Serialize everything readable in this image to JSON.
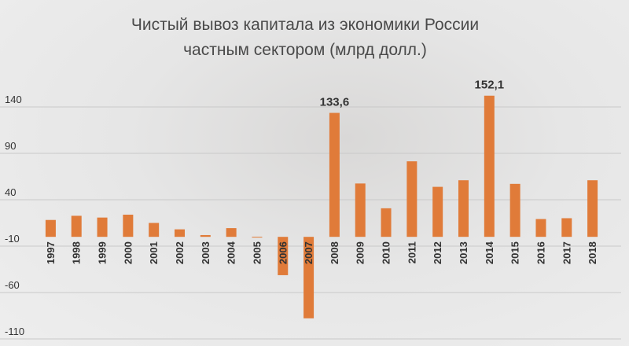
{
  "chart_data": {
    "type": "bar",
    "title_lines": [
      "Чистый вывоз капитала из экономики России",
      "частным сектором (млрд долл.)"
    ],
    "categories": [
      "1997",
      "1998",
      "1999",
      "2000",
      "2001",
      "2002",
      "2003",
      "2004",
      "2005",
      "2006",
      "2007",
      "2008",
      "2009",
      "2010",
      "2011",
      "2012",
      "2013",
      "2014",
      "2015",
      "2016",
      "2017",
      "2018"
    ],
    "values": [
      18.2,
      22.7,
      20.8,
      23.9,
      15.0,
      8.1,
      1.9,
      9.4,
      0.1,
      -41.3,
      -87.8,
      133.6,
      57.5,
      30.8,
      81.4,
      53.9,
      61.0,
      152.1,
      57.1,
      19.2,
      20.1,
      61.0
    ],
    "data_labels": [
      {
        "category": "2008",
        "text": "133,6"
      },
      {
        "category": "2014",
        "text": "152,1"
      }
    ],
    "yticks": [
      "140",
      "90",
      "40",
      "-10",
      "-60",
      "-110"
    ],
    "ytick_values": [
      140,
      90,
      40,
      -10,
      -60,
      -110
    ],
    "ylim": [
      -110,
      165
    ],
    "grid": true,
    "bar_color": "#e07b39"
  }
}
